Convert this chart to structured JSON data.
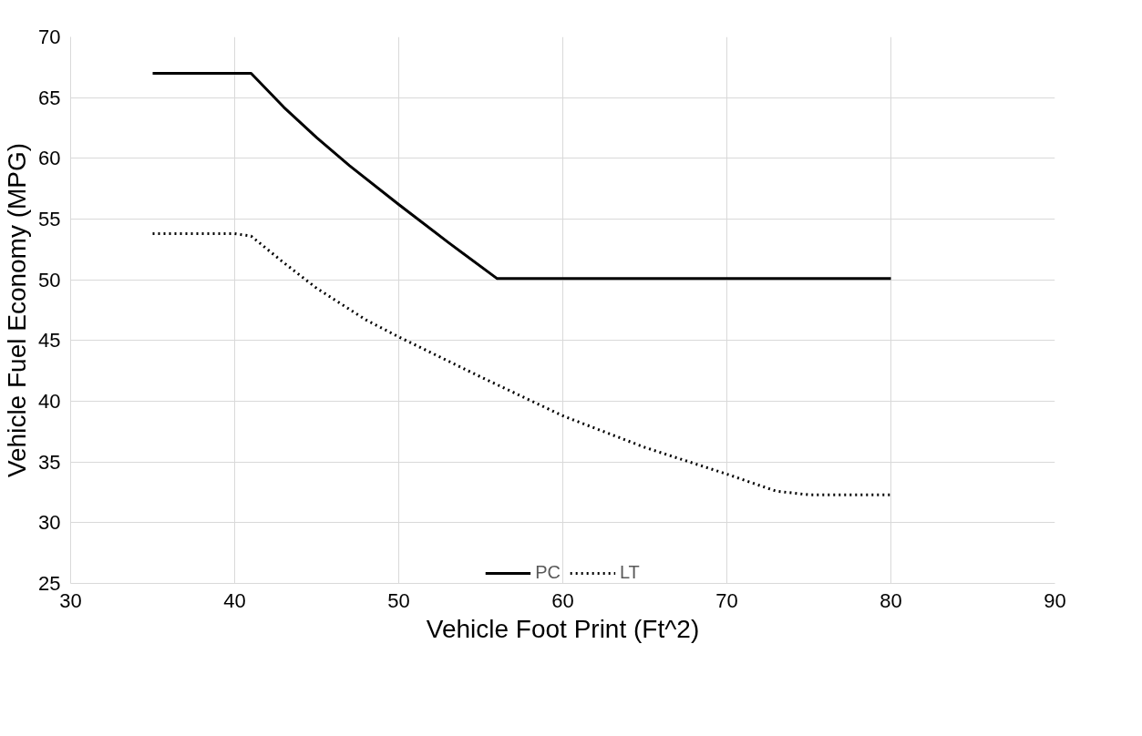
{
  "chart_data": {
    "type": "line",
    "xlabel": "Vehicle Foot Print (Ft^2)",
    "ylabel": "Vehicle Fuel Economy (MPG)",
    "xlim": [
      30,
      90
    ],
    "xticks": [
      30,
      40,
      50,
      60,
      70,
      80,
      90
    ],
    "ylim": [
      25,
      70
    ],
    "yticks": [
      25,
      30,
      35,
      40,
      45,
      50,
      55,
      60,
      65,
      70
    ],
    "grid": true,
    "legend": "bottom",
    "series": [
      {
        "name": "PC",
        "color": "#000000",
        "line_style": "solid",
        "x": [
          35,
          41,
          43,
          45,
          47,
          50,
          53,
          56,
          80
        ],
        "values": [
          67,
          67,
          64.2,
          61.7,
          59.4,
          56.2,
          53.1,
          50.1,
          50.1
        ]
      },
      {
        "name": "LT",
        "color": "#000000",
        "line_style": "dotted",
        "x": [
          35,
          40,
          41,
          43,
          45,
          48,
          50,
          55,
          60,
          65,
          70,
          73,
          75,
          80
        ],
        "values": [
          53.8,
          53.8,
          53.6,
          51.4,
          49.3,
          46.7,
          45.3,
          42,
          38.8,
          36.2,
          34,
          32.6,
          32.3,
          32.3
        ]
      }
    ]
  }
}
